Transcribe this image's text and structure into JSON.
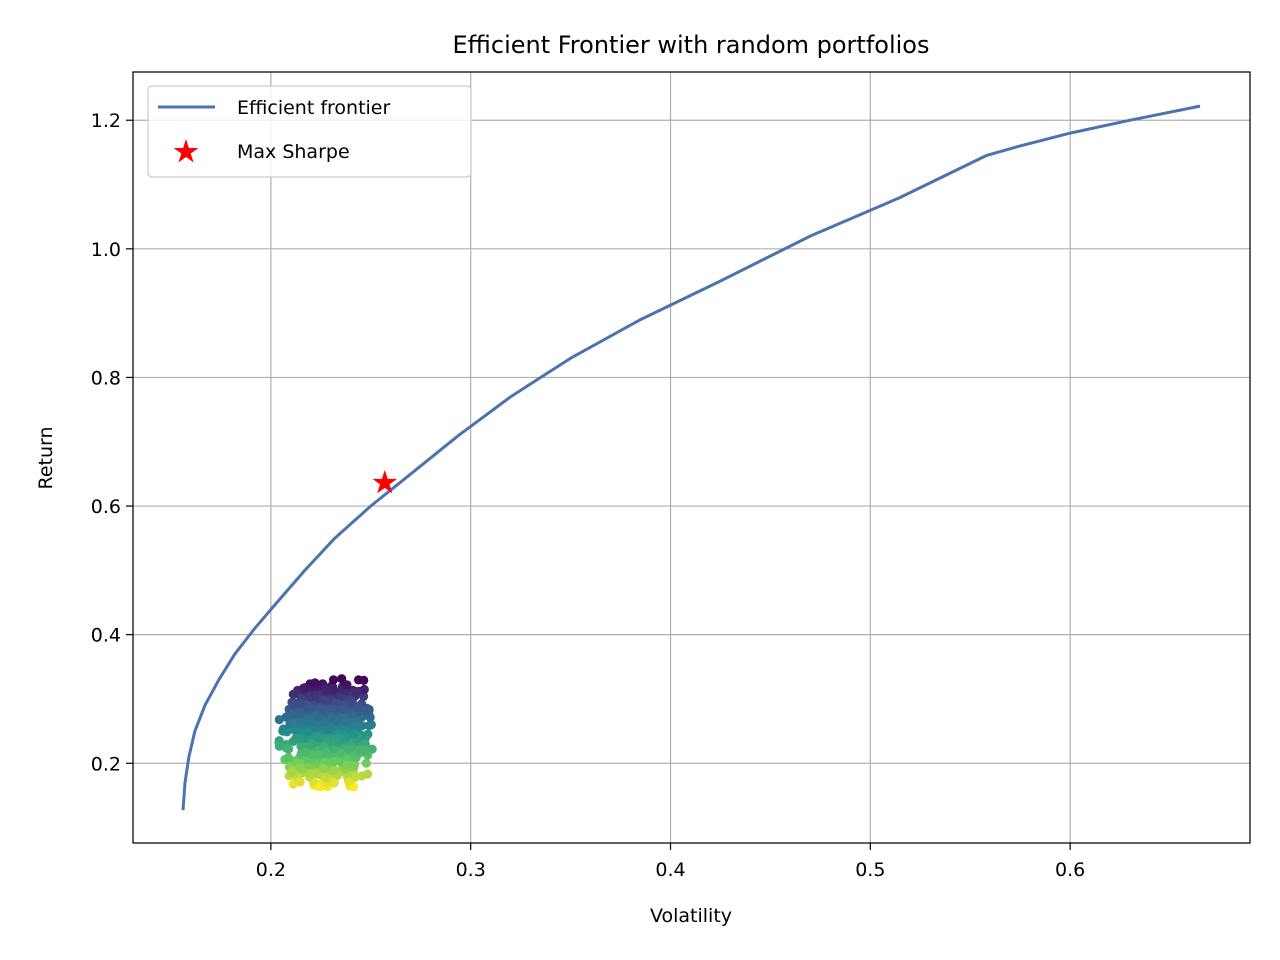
{
  "chart_data": {
    "type": "scatter",
    "title": "Efficient Frontier with random portfolios",
    "xlabel": "Volatility",
    "ylabel": "Return",
    "xlim": [
      0.131,
      0.69
    ],
    "ylim": [
      0.076,
      1.275
    ],
    "xticks": [
      0.2,
      0.3,
      0.4,
      0.5,
      0.6
    ],
    "yticks": [
      0.2,
      0.4,
      0.6,
      0.8,
      1.0,
      1.2
    ],
    "xtick_labels": [
      "0.2",
      "0.3",
      "0.4",
      "0.5",
      "0.6"
    ],
    "ytick_labels": [
      "0.2",
      "0.4",
      "0.6",
      "0.8",
      "1.0",
      "1.2"
    ],
    "grid": true,
    "legend_position": "top-left",
    "colors": {
      "frontier": "#4c72b0",
      "max_sharpe": "#ff0000",
      "grid": "#b0b0b0",
      "colormap": [
        "#440154",
        "#3b528b",
        "#21908d",
        "#5dc863",
        "#fde725"
      ]
    },
    "series": [
      {
        "name": "Efficient frontier",
        "kind": "line",
        "points": [
          [
            0.156,
            0.127
          ],
          [
            0.157,
            0.17
          ],
          [
            0.159,
            0.21
          ],
          [
            0.162,
            0.25
          ],
          [
            0.167,
            0.29
          ],
          [
            0.174,
            0.33
          ],
          [
            0.182,
            0.37
          ],
          [
            0.192,
            0.41
          ],
          [
            0.203,
            0.45
          ],
          [
            0.217,
            0.5
          ],
          [
            0.232,
            0.55
          ],
          [
            0.25,
            0.6
          ],
          [
            0.27,
            0.65
          ],
          [
            0.294,
            0.71
          ],
          [
            0.32,
            0.77
          ],
          [
            0.35,
            0.83
          ],
          [
            0.385,
            0.89
          ],
          [
            0.425,
            0.95
          ],
          [
            0.47,
            1.02
          ],
          [
            0.515,
            1.08
          ],
          [
            0.558,
            1.145
          ],
          [
            0.575,
            1.16
          ],
          [
            0.6,
            1.18
          ],
          [
            0.63,
            1.2
          ],
          [
            0.665,
            1.222
          ]
        ]
      },
      {
        "name": "Max Sharpe",
        "kind": "marker",
        "points": [
          [
            0.257,
            0.636
          ]
        ]
      },
      {
        "kind": "scatter",
        "colormap": "viridis",
        "cluster": {
          "vol_center": 0.228,
          "vol_min": 0.203,
          "vol_max": 0.253,
          "ret_min": 0.163,
          "ret_max": 0.332,
          "count": 1000
        }
      }
    ]
  }
}
